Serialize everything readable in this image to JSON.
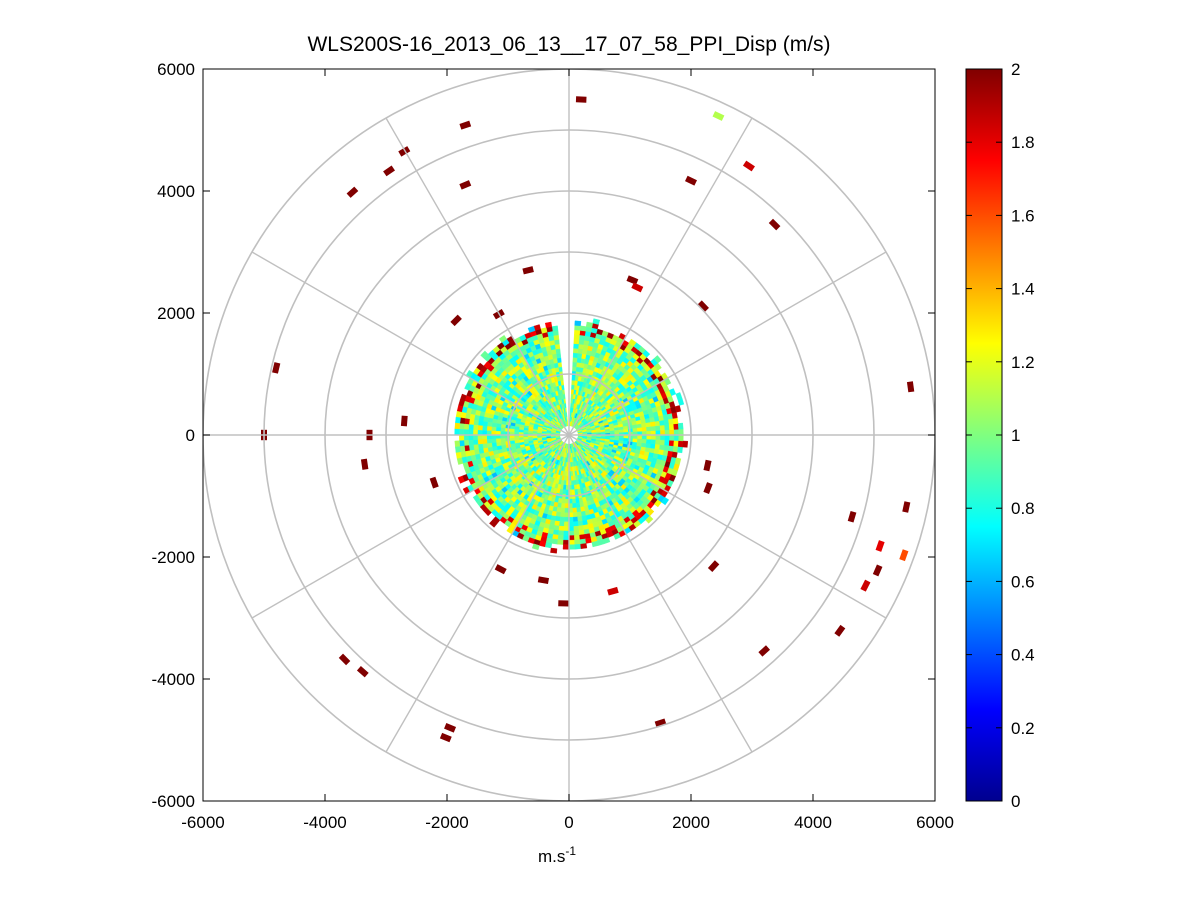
{
  "chart_data": {
    "type": "heatmap",
    "subtype": "polar-ppi-scan",
    "title": "WLS200S-16_2013_06_13__17_07_58_PPI_Disp (m/s)",
    "xlabel": "m.s",
    "xlabel_superscript": "-1",
    "ylabel": "",
    "xlim": [
      -6000,
      6000
    ],
    "ylim": [
      -6000,
      6000
    ],
    "xticks": [
      -6000,
      -4000,
      -2000,
      0,
      2000,
      4000,
      6000
    ],
    "yticks": [
      -6000,
      -4000,
      -2000,
      0,
      2000,
      4000,
      6000
    ],
    "xtick_labels": [
      "-6000",
      "-4000",
      "-2000",
      "0",
      "2000",
      "4000",
      "6000"
    ],
    "ytick_labels": [
      "6000",
      "4000",
      "2000",
      "0",
      "-2000",
      "-4000",
      "-6000"
    ],
    "polar_grid": {
      "range_rings_m": [
        1000,
        2000,
        3000,
        4000,
        5000,
        6000
      ],
      "radial_spokes_deg": [
        0,
        30,
        60,
        90,
        120,
        150,
        180,
        210,
        240,
        270,
        300,
        330
      ]
    },
    "colorbar": {
      "colormap": "jet",
      "clim": [
        0,
        2
      ],
      "ticks": [
        0,
        0.2,
        0.4,
        0.6,
        0.8,
        1,
        1.2,
        1.4,
        1.6,
        1.8,
        2
      ],
      "tick_labels": [
        "0",
        "0.2",
        "0.4",
        "0.6",
        "0.8",
        "1",
        "1.2",
        "1.4",
        "1.6",
        "1.8",
        "2"
      ]
    },
    "dense_region": {
      "description": "near-field returns, values mostly 0.8-1.2 m/s, with a high-value (~2) rim",
      "inner_radius_m": 0,
      "outer_radius_m": 1900,
      "typical_value_range": [
        0.75,
        1.3
      ],
      "gap_azimuth_deg": [
        -4,
        4
      ],
      "rim_value": 2
    },
    "scattered_returns": [
      {
        "x": 200,
        "y": 5500,
        "value": 2
      },
      {
        "x": 2450,
        "y": 5230,
        "value": 1.1
      },
      {
        "x": -1700,
        "y": 5080,
        "value": 2
      },
      {
        "x": 2950,
        "y": 4410,
        "value": 1.85
      },
      {
        "x": -2700,
        "y": 4650,
        "value": 2
      },
      {
        "x": -2950,
        "y": 4330,
        "value": 2
      },
      {
        "x": -3550,
        "y": 3980,
        "value": 2
      },
      {
        "x": -1700,
        "y": 4100,
        "value": 2
      },
      {
        "x": 2000,
        "y": 4170,
        "value": 2
      },
      {
        "x": 3370,
        "y": 3450,
        "value": 2
      },
      {
        "x": 1040,
        "y": 2540,
        "value": 2
      },
      {
        "x": 1120,
        "y": 2420,
        "value": 1.85
      },
      {
        "x": 2200,
        "y": 2110,
        "value": 2
      },
      {
        "x": -670,
        "y": 2700,
        "value": 2
      },
      {
        "x": -1850,
        "y": 1880,
        "value": 2
      },
      {
        "x": -1150,
        "y": 1980,
        "value": 2
      },
      {
        "x": -4800,
        "y": 1100,
        "value": 2
      },
      {
        "x": 5600,
        "y": 790,
        "value": 2
      },
      {
        "x": -5000,
        "y": 0,
        "value": 2
      },
      {
        "x": -3270,
        "y": 0,
        "value": 2
      },
      {
        "x": -2700,
        "y": 230,
        "value": 2
      },
      {
        "x": -3350,
        "y": -480,
        "value": 2
      },
      {
        "x": 2270,
        "y": -500,
        "value": 2
      },
      {
        "x": 2280,
        "y": -870,
        "value": 2
      },
      {
        "x": -2210,
        "y": -780,
        "value": 2
      },
      {
        "x": 5530,
        "y": -1180,
        "value": 2
      },
      {
        "x": 4640,
        "y": -1340,
        "value": 2
      },
      {
        "x": 5100,
        "y": -1820,
        "value": 1.8
      },
      {
        "x": 5490,
        "y": -1970,
        "value": 1.6
      },
      {
        "x": 5060,
        "y": -2220,
        "value": 2
      },
      {
        "x": 4860,
        "y": -2470,
        "value": 1.85
      },
      {
        "x": 2370,
        "y": -2150,
        "value": 2
      },
      {
        "x": 720,
        "y": -2560,
        "value": 1.85
      },
      {
        "x": -1120,
        "y": -2200,
        "value": 2
      },
      {
        "x": -420,
        "y": -2380,
        "value": 2
      },
      {
        "x": -90,
        "y": -2760,
        "value": 2
      },
      {
        "x": 4440,
        "y": -3210,
        "value": 2
      },
      {
        "x": 3200,
        "y": -3540,
        "value": 2
      },
      {
        "x": -3680,
        "y": -3680,
        "value": 2
      },
      {
        "x": -3380,
        "y": -3880,
        "value": 2
      },
      {
        "x": -1950,
        "y": -4800,
        "value": 2
      },
      {
        "x": -2020,
        "y": -4960,
        "value": 2
      },
      {
        "x": 1500,
        "y": -4720,
        "value": 2
      }
    ]
  }
}
